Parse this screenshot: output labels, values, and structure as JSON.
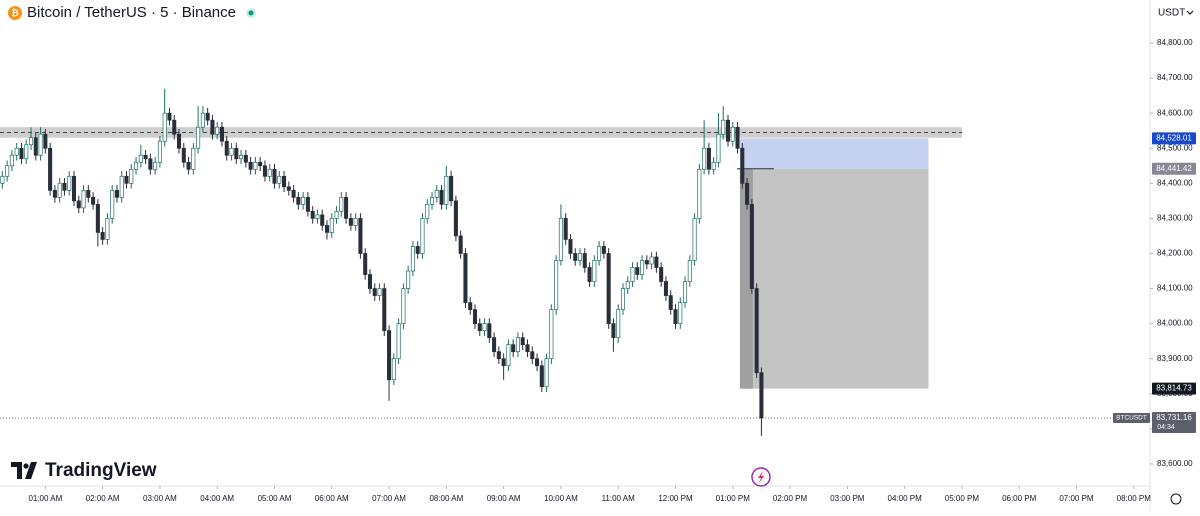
{
  "chart_data": {
    "type": "candlestick",
    "title": "Bitcoin / TetherUS · 5 · Binance",
    "currency": "USDT",
    "logo": "TradingView",
    "symbol": "BTCUSDT",
    "countdown": "04:34",
    "up_color": "#ffffff",
    "up_border": "#1f6f62",
    "down_color": "#2a2e39",
    "ylim": [
      83540,
      84922.6
    ],
    "xlim": [
      -0.5,
      240.4
    ],
    "yticks": [
      {
        "value": 84800,
        "label": "84,800.00"
      },
      {
        "value": 84700,
        "label": "84,700.00"
      },
      {
        "value": 84600,
        "label": "84,600.00"
      },
      {
        "value": 84500,
        "label": "84,500.00"
      },
      {
        "value": 84400,
        "label": "84,400.00"
      },
      {
        "value": 84300,
        "label": "84,300.00"
      },
      {
        "value": 84200,
        "label": "84,200.00"
      },
      {
        "value": 84100,
        "label": "84,100.00"
      },
      {
        "value": 84000,
        "label": "84,000.00"
      },
      {
        "value": 83900,
        "label": "83,900.00"
      },
      {
        "value": 83800,
        "label": "83,800.00"
      },
      {
        "value": 83700,
        "label": "83,700.00"
      },
      {
        "value": 83600,
        "label": "83,600.00"
      }
    ],
    "xticks": [
      {
        "value": 9,
        "label": "01:00 AM"
      },
      {
        "value": 21,
        "label": "02:00 AM"
      },
      {
        "value": 33,
        "label": "03:00 AM"
      },
      {
        "value": 45,
        "label": "04:00 AM"
      },
      {
        "value": 57,
        "label": "05:00 AM"
      },
      {
        "value": 69,
        "label": "06:00 AM"
      },
      {
        "value": 81,
        "label": "07:00 AM"
      },
      {
        "value": 93,
        "label": "08:00 AM"
      },
      {
        "value": 105,
        "label": "09:00 AM"
      },
      {
        "value": 117,
        "label": "10:00 AM"
      },
      {
        "value": 129,
        "label": "11:00 AM"
      },
      {
        "value": 141,
        "label": "12:00 PM"
      },
      {
        "value": 153,
        "label": "01:00 PM"
      },
      {
        "value": 165,
        "label": "02:00 PM"
      },
      {
        "value": 177,
        "label": "03:00 PM"
      },
      {
        "value": 189,
        "label": "04:00 PM"
      },
      {
        "value": 201,
        "label": "05:00 PM"
      },
      {
        "value": 213,
        "label": "06:00 PM"
      },
      {
        "value": 225,
        "label": "07:00 PM"
      },
      {
        "value": 237,
        "label": "08:00 PM"
      }
    ],
    "zone": [
      84530,
      84560
    ],
    "zone_dash": 84545,
    "target": {
      "value": 84528.01,
      "label": "84,528.01"
    },
    "entry": {
      "value": 84441.42,
      "label": "84,441.42"
    },
    "stop": {
      "value": 83814.73,
      "label": "83,814.73"
    },
    "position_start": 155,
    "position_end": 194,
    "last_price": {
      "value": 83731.16,
      "label": "83,731.16"
    },
    "open": [
      84400,
      84420,
      84450,
      84480,
      84500,
      84470,
      84510,
      84530,
      84480,
      84540,
      84500,
      84380,
      84360,
      84400,
      84380,
      84420,
      84350,
      84330,
      84380,
      84360,
      84340,
      84260,
      84240,
      84300,
      84380,
      84360,
      84420,
      84400,
      84440,
      84460,
      84480,
      84470,
      84440,
      84460,
      84520,
      84600,
      84580,
      84540,
      84500,
      84460,
      84440,
      84500,
      84560,
      84600,
      84580,
      84540,
      84560,
      84520,
      84480,
      84500,
      84470,
      84480,
      84460,
      84440,
      84460,
      84450,
      84420,
      84440,
      84400,
      84420,
      84390,
      84380,
      84360,
      84340,
      84360,
      84320,
      84300,
      84310,
      84280,
      84260,
      84300,
      84320,
      84360,
      84300,
      84280,
      84300,
      84200,
      84140,
      84100,
      84080,
      84100,
      83980,
      83840,
      83900,
      84000,
      84100,
      84150,
      84220,
      84200,
      84300,
      84340,
      84360,
      84380,
      84340,
      84420,
      84350,
      84250,
      84200,
      84060,
      84040,
      84000,
      83980,
      84000,
      83960,
      83920,
      83900,
      83880,
      83940,
      83920,
      83960,
      83940,
      83920,
      83900,
      83880,
      83820,
      83900,
      84040,
      84180,
      84300,
      84240,
      84200,
      84180,
      84200,
      84160,
      84120,
      84180,
      84220,
      84200,
      84000,
      83960,
      84040,
      84100,
      84120,
      84160,
      84140,
      84180,
      84170,
      84190,
      84160,
      84120,
      84080,
      84040,
      84000,
      84060,
      84120,
      84180,
      84300,
      84440,
      84500,
      84440,
      84460,
      84540,
      84580,
      84520,
      84560,
      84500,
      84400,
      84340,
      84100,
      83860
    ],
    "high": [
      84435,
      84465,
      84495,
      84515,
      84515,
      84525,
      84560,
      84545,
      84560,
      84555,
      84515,
      84395,
      84415,
      84415,
      84435,
      84435,
      84365,
      84395,
      84395,
      84375,
      84355,
      84275,
      84315,
      84395,
      84395,
      84435,
      84435,
      84455,
      84475,
      84510,
      84495,
      84485,
      84475,
      84535,
      84670,
      84615,
      84595,
      84555,
      84515,
      84475,
      84515,
      84620,
      84620,
      84615,
      84595,
      84575,
      84575,
      84535,
      84515,
      84515,
      84495,
      84495,
      84475,
      84475,
      84475,
      84465,
      84455,
      84455,
      84435,
      84435,
      84405,
      84395,
      84375,
      84375,
      84375,
      84335,
      84325,
      84325,
      84295,
      84315,
      84335,
      84375,
      84375,
      84315,
      84315,
      84315,
      84215,
      84155,
      84115,
      84115,
      84115,
      83995,
      83915,
      84015,
      84115,
      84165,
      84235,
      84235,
      84315,
      84355,
      84375,
      84395,
      84395,
      84450,
      84435,
      84365,
      84265,
      84215,
      84075,
      84055,
      84015,
      84015,
      84015,
      83975,
      83935,
      83915,
      83955,
      83955,
      83975,
      83975,
      83955,
      83935,
      83915,
      83895,
      83915,
      84055,
      84195,
      84340,
      84315,
      84255,
      84215,
      84215,
      84215,
      84175,
      84195,
      84235,
      84235,
      84215,
      84015,
      84055,
      84115,
      84135,
      84175,
      84175,
      84195,
      84195,
      84205,
      84205,
      84175,
      84135,
      84095,
      84055,
      84075,
      84135,
      84195,
      84315,
      84455,
      84580,
      84515,
      84475,
      84600,
      84620,
      84595,
      84575,
      84575,
      84515,
      84415,
      84355,
      84115,
      83875
    ],
    "low": [
      84385,
      84405,
      84435,
      84465,
      84455,
      84455,
      84495,
      84465,
      84465,
      84485,
      84365,
      84345,
      84345,
      84365,
      84365,
      84335,
      84315,
      84315,
      84345,
      84325,
      84220,
      84225,
      84225,
      84285,
      84345,
      84345,
      84385,
      84385,
      84425,
      84445,
      84455,
      84425,
      84425,
      84445,
      84505,
      84565,
      84525,
      84485,
      84445,
      84425,
      84425,
      84485,
      84545,
      84565,
      84525,
      84525,
      84505,
      84465,
      84465,
      84455,
      84455,
      84445,
      84425,
      84425,
      84435,
      84405,
      84405,
      84385,
      84385,
      84375,
      84365,
      84345,
      84325,
      84325,
      84305,
      84285,
      84285,
      84265,
      84240,
      84245,
      84285,
      84305,
      84285,
      84265,
      84265,
      84185,
      84125,
      84085,
      84065,
      84065,
      83965,
      83780,
      83825,
      83885,
      83985,
      84085,
      84135,
      84185,
      84185,
      84285,
      84325,
      84345,
      84325,
      84325,
      84335,
      84235,
      84185,
      84045,
      84025,
      83985,
      83965,
      83965,
      83945,
      83905,
      83885,
      83840,
      83865,
      83905,
      83905,
      83925,
      83905,
      83885,
      83865,
      83805,
      83805,
      83885,
      84025,
      84165,
      84225,
      84185,
      84165,
      84165,
      84145,
      84105,
      84105,
      84165,
      84185,
      83985,
      83920,
      83945,
      84025,
      84085,
      84105,
      84125,
      84125,
      84155,
      84155,
      84145,
      84105,
      84065,
      84025,
      83985,
      83985,
      84045,
      84105,
      84165,
      84285,
      84425,
      84425,
      84425,
      84445,
      84525,
      84505,
      84505,
      84485,
      84385,
      84325,
      84085,
      83845,
      83680
    ],
    "close": [
      84420,
      84450,
      84480,
      84500,
      84470,
      84510,
      84530,
      84480,
      84540,
      84500,
      84380,
      84360,
      84400,
      84380,
      84420,
      84350,
      84330,
      84380,
      84360,
      84340,
      84260,
      84240,
      84300,
      84380,
      84360,
      84420,
      84400,
      84440,
      84460,
      84480,
      84470,
      84440,
      84460,
      84520,
      84600,
      84580,
      84540,
      84500,
      84460,
      84440,
      84500,
      84560,
      84600,
      84580,
      84540,
      84560,
      84520,
      84480,
      84500,
      84470,
      84480,
      84460,
      84440,
      84460,
      84450,
      84420,
      84440,
      84400,
      84420,
      84390,
      84380,
      84360,
      84340,
      84360,
      84320,
      84300,
      84310,
      84280,
      84260,
      84300,
      84320,
      84360,
      84300,
      84280,
      84300,
      84200,
      84140,
      84100,
      84080,
      84100,
      83980,
      83840,
      83900,
      84000,
      84100,
      84150,
      84220,
      84200,
      84300,
      84340,
      84360,
      84380,
      84340,
      84420,
      84350,
      84250,
      84200,
      84060,
      84040,
      84000,
      83980,
      84000,
      83960,
      83920,
      83900,
      83880,
      83940,
      83920,
      83960,
      83940,
      83920,
      83900,
      83880,
      83820,
      83900,
      84040,
      84180,
      84300,
      84240,
      84200,
      84180,
      84200,
      84160,
      84120,
      84180,
      84220,
      84200,
      84000,
      83960,
      84040,
      84100,
      84120,
      84160,
      84140,
      84180,
      84170,
      84190,
      84160,
      84120,
      84080,
      84040,
      84000,
      84060,
      84120,
      84180,
      84300,
      84440,
      84500,
      84440,
      84460,
      84540,
      84580,
      84520,
      84560,
      84500,
      84400,
      84340,
      84100,
      83860,
      83731.16
    ]
  }
}
